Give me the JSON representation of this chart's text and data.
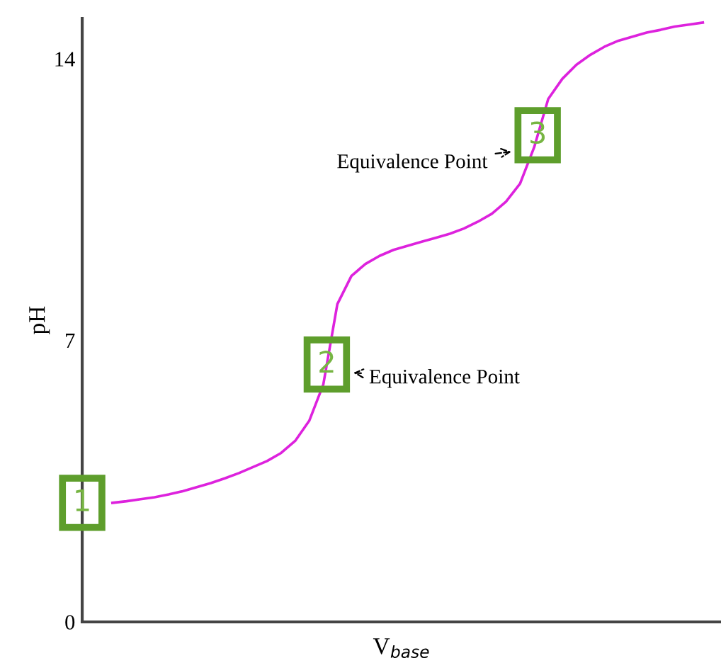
{
  "chart_data": {
    "type": "line",
    "xlabel": "V$_{base}$",
    "ylabel": "pH",
    "categories": [
      null,
      null,
      null,
      null,
      null,
      null,
      null,
      null,
      null,
      null,
      null,
      null,
      null,
      null,
      null,
      null,
      null,
      null,
      null,
      null,
      null,
      null,
      null,
      null,
      null,
      null,
      null,
      null,
      null,
      null,
      null,
      null,
      null,
      null,
      null,
      null,
      null,
      null,
      null,
      null,
      null,
      null,
      null
    ],
    "series": [
      {
        "color": "#dd22dd",
        "values": [
          2.96,
          3.0,
          3.05,
          3.1,
          3.17,
          3.25,
          3.35,
          3.45,
          3.57,
          3.7,
          3.85,
          4.0,
          4.2,
          4.5,
          5.0,
          5.9,
          7.9,
          8.6,
          8.9,
          9.1,
          9.25,
          9.35,
          9.45,
          9.55,
          9.65,
          9.78,
          9.95,
          10.15,
          10.45,
          10.9,
          11.8,
          13.0,
          13.5,
          13.85,
          14.1,
          14.3,
          14.45,
          14.55,
          14.65,
          14.72,
          14.8,
          14.85,
          14.9
        ]
      }
    ],
    "ylim": [
      0,
      15
    ],
    "yticks": [
      0,
      7,
      14
    ],
    "tick_labels": "y",
    "grid": false,
    "legend": false,
    "marker": "none",
    "line_style": "solid",
    "annotations": [
      {
        "text": "1",
        "y": 2.96
      },
      {
        "text": "2",
        "y": 6.4
      },
      {
        "text": "3",
        "y": 12.1
      },
      "Equivalence Point",
      "Equivalence Point"
    ]
  }
}
